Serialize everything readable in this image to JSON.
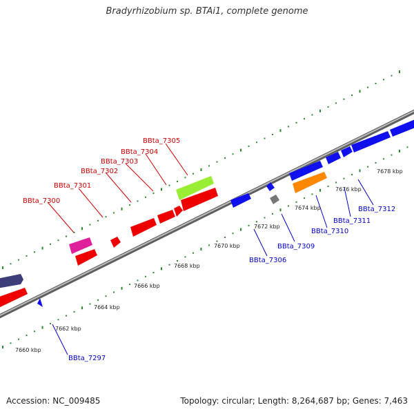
{
  "title": "Bradyrhizobium sp. BTAi1, complete genome",
  "footer": {
    "accession": "Accession: NC_009485",
    "summary": "Topology: circular; Length: 8,264,687 bp; Genes: 7,463"
  },
  "colors": {
    "backbone": "#8a8a8a",
    "tick": "#2a8a2a",
    "label_top": "#cc0000",
    "label_bottom": "#0000cc"
  },
  "scale": {
    "unit": "kbp",
    "labels": [
      "7660 kbp",
      "7662 kbp",
      "7664 kbp",
      "7666 kbp",
      "7668 kbp",
      "7670 kbp",
      "7672 kbp",
      "7674 kbp",
      "7676 kbp",
      "7678 kbp"
    ]
  },
  "genes": {
    "top_labels": [
      "BBta_7300",
      "BBta_7301",
      "BBta_7302",
      "BBta_7303",
      "BBta_7304",
      "BBta_7305"
    ],
    "bottom_labels": [
      "BBta_7297",
      "BBta_7306",
      "BBta_7309",
      "BBta_7310",
      "BBta_7311",
      "BBta_7312"
    ]
  }
}
